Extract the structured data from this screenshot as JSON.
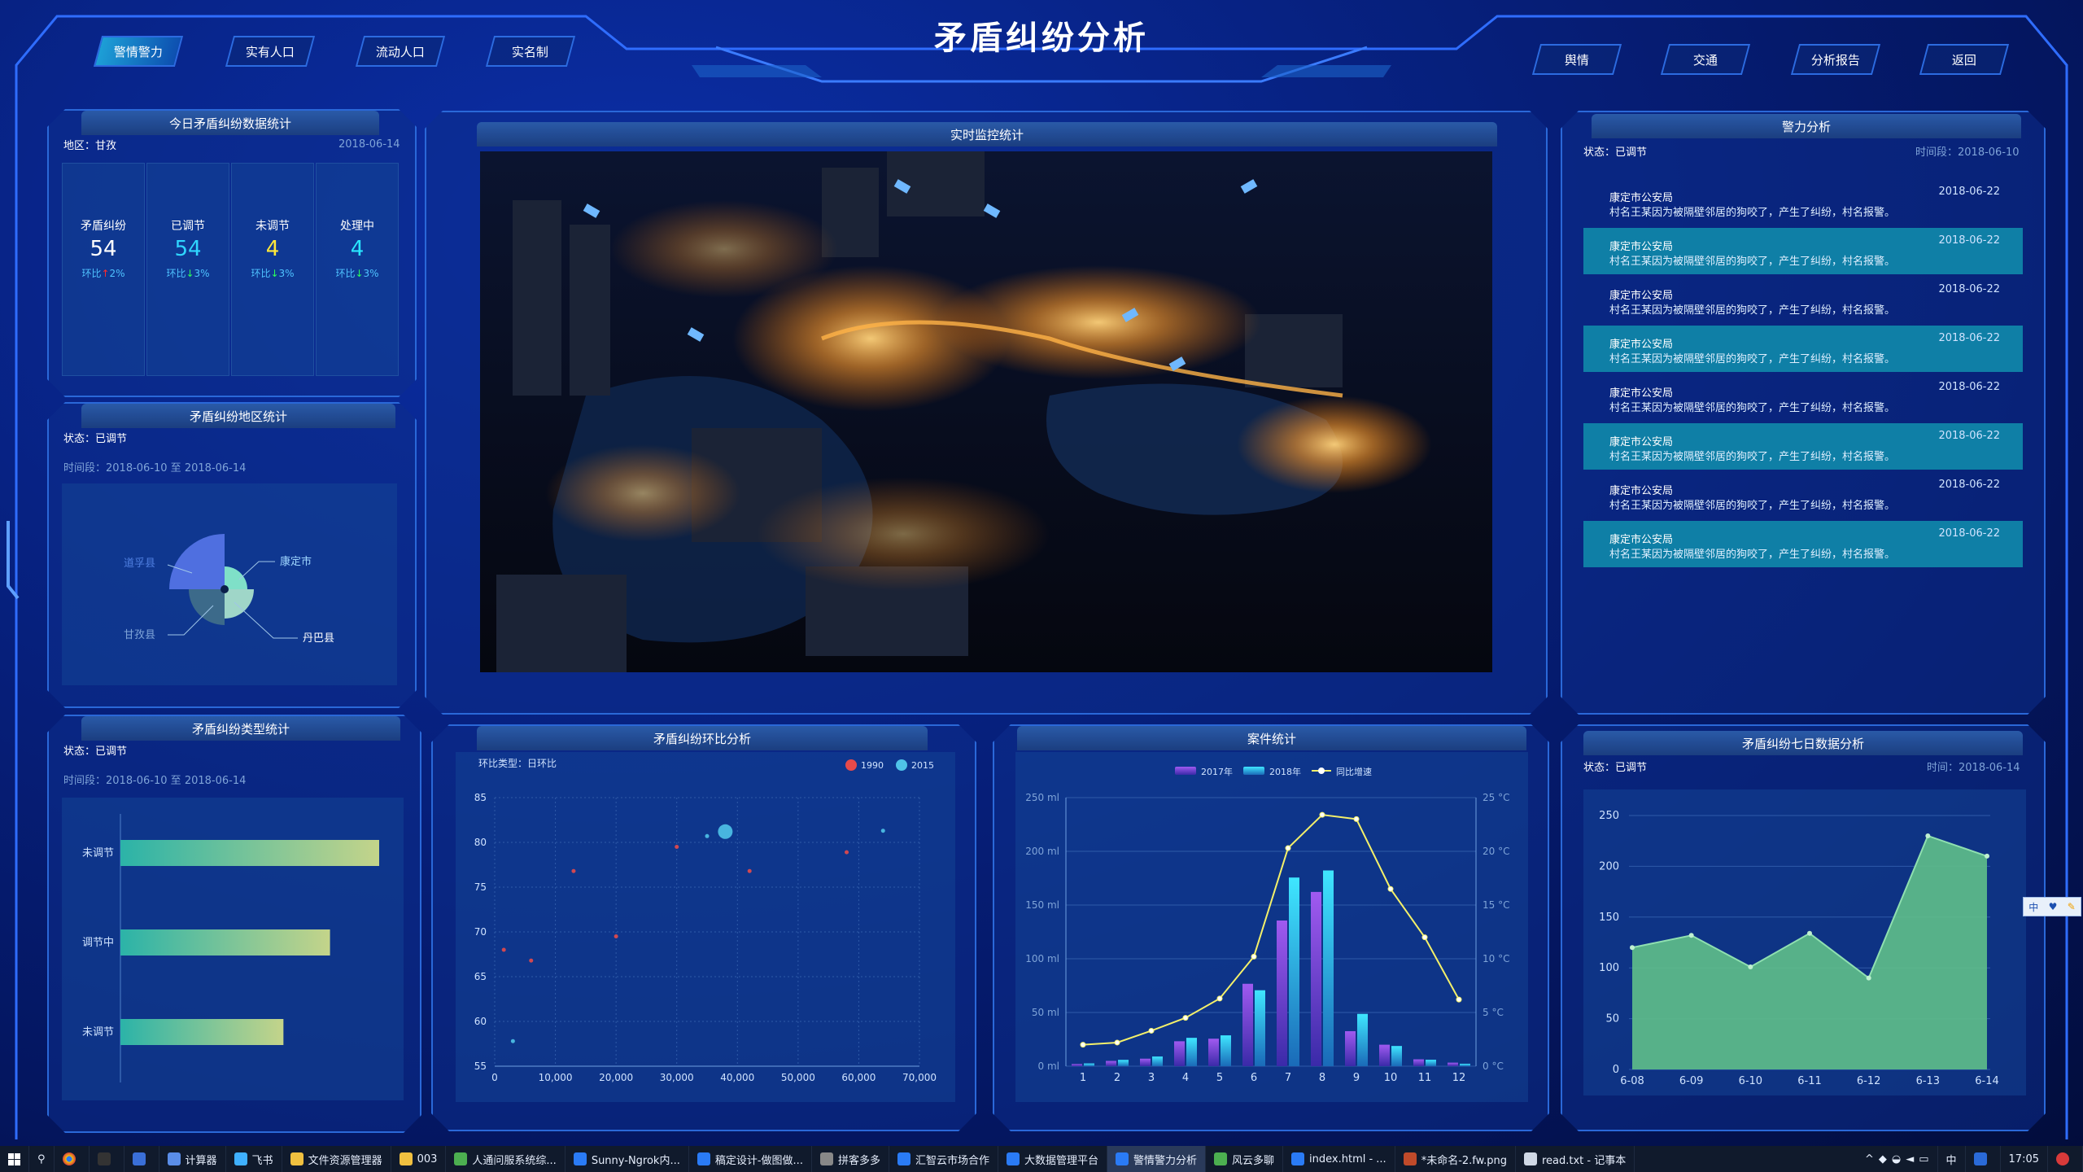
{
  "title": "矛盾纠纷分析",
  "nav_left": [
    "警情警力",
    "实有人口",
    "流动人口",
    "实名制"
  ],
  "nav_right": [
    "舆情",
    "交通",
    "分析报告",
    "返回"
  ],
  "today": {
    "title": "今日矛盾纠纷数据统计",
    "region": "地区：甘孜",
    "date": "2018-06-14",
    "stats": [
      {
        "label": "矛盾纠纷",
        "value": "54",
        "change_label": "环比",
        "arrow": "↑",
        "pct": "2%",
        "color": "#ffffff"
      },
      {
        "label": "已调节",
        "value": "54",
        "change_label": "环比",
        "arrow": "↓",
        "pct": "3%",
        "color": "#2fd6ff"
      },
      {
        "label": "未调节",
        "value": "4",
        "change_label": "环比",
        "arrow": "↓",
        "pct": "3%",
        "color": "#ffe83a"
      },
      {
        "label": "处理中",
        "value": "4",
        "change_label": "环比",
        "arrow": "↓",
        "pct": "3%",
        "color": "#29e6ff"
      }
    ]
  },
  "region_stats": {
    "title": "矛盾纠纷地区统计",
    "status": "状态：已调节",
    "period": "时间段：2018-06-10 至 2018-06-14",
    "labels": [
      "康定市",
      "丹巴县",
      "甘孜县",
      "道孚县"
    ]
  },
  "monitor": {
    "title": "实时监控统计"
  },
  "police": {
    "title": "警力分析",
    "status": "状态：已调节",
    "period": "时间段：2018-06-10",
    "items": [
      {
        "org": "康定市公安局",
        "msg": "村名王某因为被隔壁邻居的狗咬了，产生了纠纷，村名报警。",
        "date": "2018-06-22"
      },
      {
        "org": "康定市公安局",
        "msg": "村名王某因为被隔壁邻居的狗咬了，产生了纠纷，村名报警。",
        "date": "2018-06-22"
      },
      {
        "org": "康定市公安局",
        "msg": "村名王某因为被隔壁邻居的狗咬了，产生了纠纷，村名报警。",
        "date": "2018-06-22"
      },
      {
        "org": "康定市公安局",
        "msg": "村名王某因为被隔壁邻居的狗咬了，产生了纠纷，村名报警。",
        "date": "2018-06-22"
      },
      {
        "org": "康定市公安局",
        "msg": "村名王某因为被隔壁邻居的狗咬了，产生了纠纷，村名报警。",
        "date": "2018-06-22"
      },
      {
        "org": "康定市公安局",
        "msg": "村名王某因为被隔壁邻居的狗咬了，产生了纠纷，村名报警。",
        "date": "2018-06-22"
      },
      {
        "org": "康定市公安局",
        "msg": "村名王某因为被隔壁邻居的狗咬了，产生了纠纷，村名报警。",
        "date": "2018-06-22"
      },
      {
        "org": "康定市公安局",
        "msg": "村名王某因为被隔壁邻居的狗咬了，产生了纠纷，村名报警。",
        "date": "2018-06-22"
      }
    ]
  },
  "type_stats": {
    "title": "矛盾纠纷类型统计",
    "status": "状态：已调节",
    "period": "时间段：2018-06-10 至 2018-06-14"
  },
  "ratio": {
    "title": "矛盾纠纷环比分析",
    "type_label": "环比类型：日环比"
  },
  "cases": {
    "title": "案件统计"
  },
  "week": {
    "title": "矛盾纠纷七日数据分析",
    "status": "状态：已调节",
    "time": "时间：2018-06-14"
  },
  "chart_data": [
    {
      "type": "pie",
      "id": "region",
      "categories": [
        "康定市",
        "丹巴县",
        "甘孜县",
        "道孚县"
      ],
      "values": [
        20,
        30,
        40,
        70
      ],
      "colors": [
        "#7fe0c8",
        "#9fd6c8",
        "#3c6a8a",
        "#4f6fe0"
      ]
    },
    {
      "type": "bar",
      "id": "types",
      "orientation": "horizontal",
      "categories": [
        "未调节",
        "调节中",
        "未调节"
      ],
      "values": [
        100,
        81,
        63
      ],
      "xlim": [
        0,
        100
      ]
    },
    {
      "type": "scatter",
      "id": "ratio",
      "series": [
        {
          "name": "1990",
          "color": "#e64a4a",
          "points": [
            [
              1500,
              68
            ],
            [
              6000,
              66.8
            ],
            [
              20000,
              69.5
            ],
            [
              13000,
              76.8
            ],
            [
              42000,
              76.8
            ],
            [
              30000,
              79.5
            ],
            [
              58000,
              78.9
            ]
          ]
        },
        {
          "name": "2015",
          "color": "#4fc3e8",
          "points": [
            [
              38000,
              81.2
            ],
            [
              35000,
              80.7
            ],
            [
              64000,
              81.3
            ],
            [
              3000,
              57.8
            ]
          ]
        }
      ],
      "xlim": [
        0,
        70000
      ],
      "ylim": [
        55,
        85
      ],
      "xticks": [
        "0",
        "10,000",
        "20,000",
        "30,000",
        "40,000",
        "50,000",
        "60,000",
        "70,000"
      ],
      "yticks": [
        "55",
        "60",
        "65",
        "70",
        "75",
        "80",
        "85"
      ]
    },
    {
      "type": "bar",
      "id": "cases",
      "categories": [
        "1",
        "2",
        "3",
        "4",
        "5",
        "6",
        "7",
        "8",
        "9",
        "10",
        "11",
        "12"
      ],
      "series": [
        {
          "name": "2017年",
          "values": [
            2,
            4.9,
            7,
            23.2,
            25.6,
            76.7,
            135.6,
            162.2,
            32.6,
            20,
            6.4,
            3.3
          ]
        },
        {
          "name": "2018年",
          "values": [
            2.6,
            5.9,
            9,
            26.4,
            28.7,
            70.7,
            175.6,
            182.2,
            48.7,
            18.8,
            6,
            2.3
          ]
        }
      ],
      "line": {
        "name": "同比增速",
        "values": [
          2,
          2.2,
          3.3,
          4.5,
          6.3,
          10.2,
          20.3,
          23.4,
          23,
          16.5,
          12,
          6.2
        ]
      },
      "ylim": [
        0,
        250
      ],
      "y2lim": [
        0,
        25
      ],
      "yticks": [
        "0 ml",
        "50 ml",
        "100 ml",
        "150 ml",
        "200 ml",
        "250 ml"
      ],
      "y2ticks": [
        "0 °C",
        "5 °C",
        "10 °C",
        "15 °C",
        "20 °C",
        "25 °C"
      ]
    },
    {
      "type": "area",
      "id": "week",
      "categories": [
        "6-08",
        "6-09",
        "6-10",
        "6-11",
        "6-12",
        "6-13",
        "6-14"
      ],
      "values": [
        120,
        132,
        101,
        134,
        90,
        230,
        210
      ],
      "ylim": [
        0,
        250
      ],
      "yticks": [
        "0",
        "50",
        "100",
        "150",
        "200",
        "250"
      ]
    }
  ],
  "taskbar": {
    "items": [
      "计算器",
      "飞书",
      "文件资源管理器",
      "003",
      "人通问服系统综...",
      "Sunny-Ngrok内...",
      "稿定设计-做图做...",
      "拼客多多",
      "汇智云市场合作",
      "大数据管理平台",
      "警情警力分析",
      "风云多聊",
      "index.html - ...",
      "*未命名-2.fw.png",
      "read.txt - 记事本"
    ],
    "active": "警情警力分析",
    "ime": "中",
    "clock": "17:05"
  },
  "ime_float": "中"
}
